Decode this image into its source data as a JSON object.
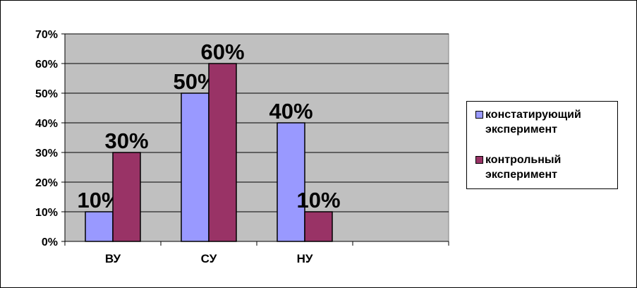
{
  "chart_data": {
    "type": "bar",
    "categories": [
      "ВУ",
      "СУ",
      "НУ",
      ""
    ],
    "series": [
      {
        "name": "констатирующий эксперимент",
        "values": [
          10,
          50,
          40,
          null
        ],
        "labels": [
          "10%",
          "50%",
          "40%",
          ""
        ],
        "color": "#9999ff"
      },
      {
        "name": "контрольный эксперимент",
        "values": [
          30,
          60,
          10,
          null
        ],
        "labels": [
          "30%",
          "60%",
          "10%",
          ""
        ],
        "color": "#993366"
      }
    ],
    "yticks": [
      "0%",
      "10%",
      "20%",
      "30%",
      "40%",
      "50%",
      "60%",
      "70%"
    ],
    "ylim": [
      0,
      70
    ],
    "grid": true,
    "plot_background": "#c0c0c0",
    "legend_position": "right"
  }
}
